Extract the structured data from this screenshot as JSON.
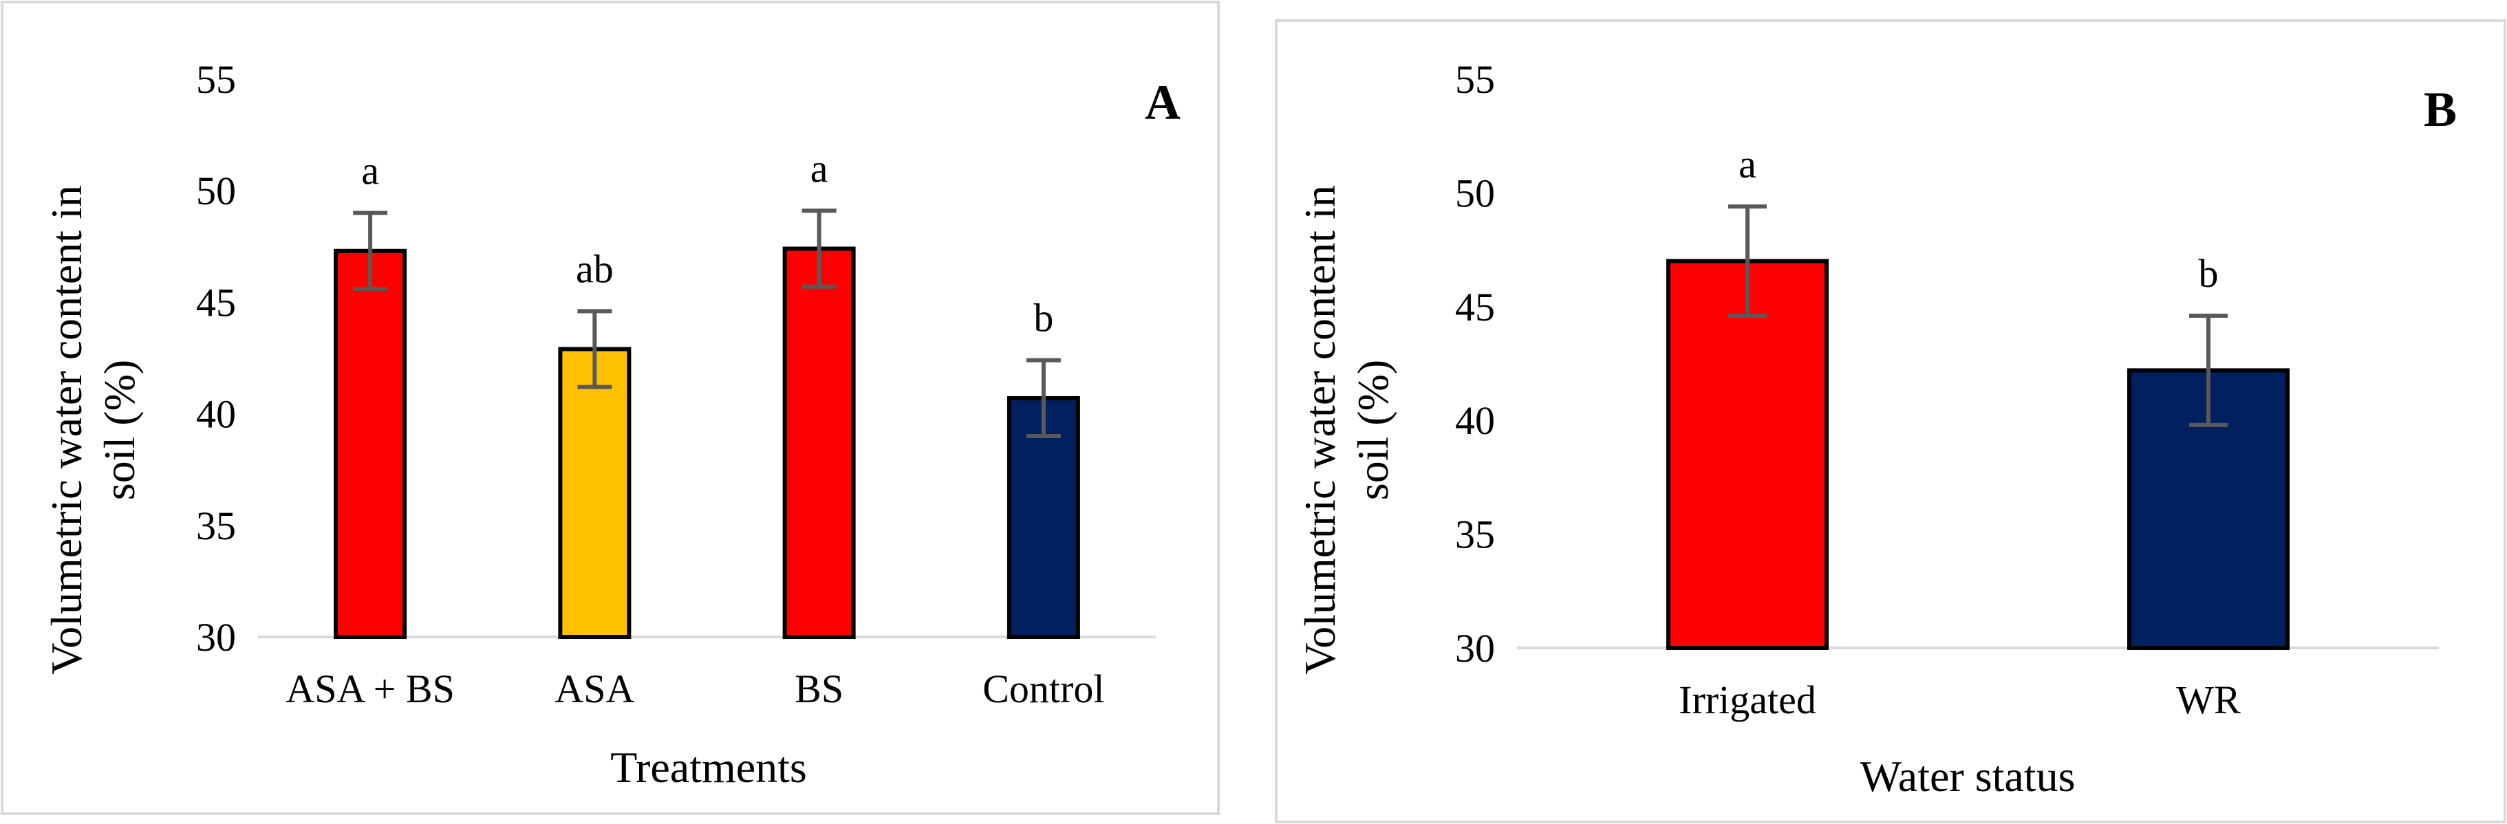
{
  "chart_data": [
    {
      "type": "bar",
      "panel_label": "A",
      "title": "",
      "xlabel": "Treatments",
      "ylabel_lines": [
        "Volumetric water content in",
        "soil (%)"
      ],
      "categories": [
        "ASA + BS",
        "ASA",
        "BS",
        "Control"
      ],
      "values": [
        47.3,
        42.9,
        47.4,
        40.7
      ],
      "errors": [
        1.7,
        1.7,
        1.7,
        1.7
      ],
      "significance": [
        "a",
        "ab",
        "a",
        "b"
      ],
      "colors": [
        "#ff0000",
        "#ffc000",
        "#ff0000",
        "#002060"
      ],
      "ylim": [
        30,
        55
      ],
      "yticks": [
        "30",
        "35",
        "40",
        "45",
        "50",
        "55"
      ],
      "grid": false
    },
    {
      "type": "bar",
      "panel_label": "B",
      "title": "",
      "xlabel": "Water status",
      "ylabel_lines": [
        "Volumetric water content in",
        "soil (%)"
      ],
      "categories": [
        "Irrigated",
        "WR"
      ],
      "values": [
        47.0,
        42.2
      ],
      "errors": [
        2.4,
        2.4
      ],
      "significance": [
        "a",
        "b"
      ],
      "colors": [
        "#ff0000",
        "#002060"
      ],
      "ylim": [
        30,
        55
      ],
      "yticks": [
        "30",
        "35",
        "40",
        "45",
        "50",
        "55"
      ],
      "grid": false
    }
  ]
}
